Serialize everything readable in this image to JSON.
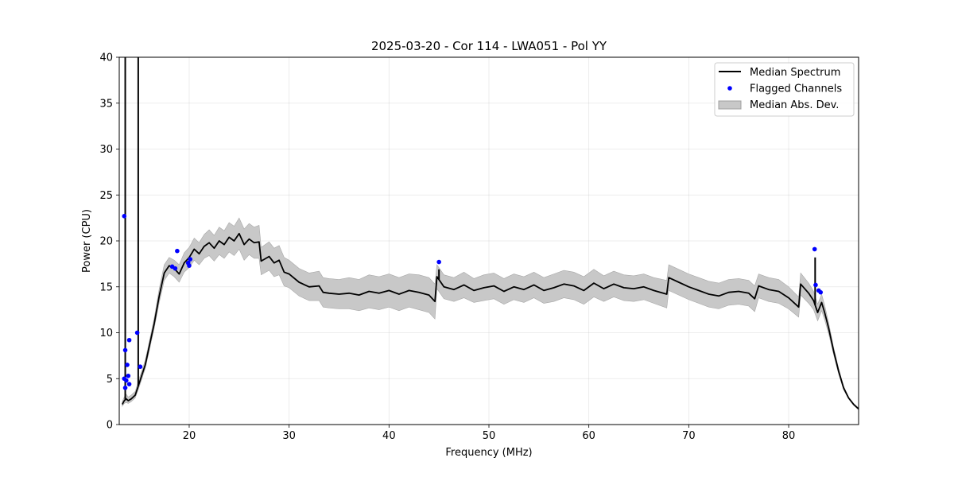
{
  "chart_data": {
    "type": "line",
    "title": "2025-03-20 - Cor 114 - LWA051 - Pol YY",
    "xlabel": "Frequency (MHz)",
    "ylabel": "Power (CPU)",
    "xlim": [
      13,
      87
    ],
    "ylim": [
      0,
      40
    ],
    "xticks": [
      20,
      30,
      40,
      50,
      60,
      70,
      80
    ],
    "yticks": [
      0,
      5,
      10,
      15,
      20,
      25,
      30,
      35,
      40
    ],
    "grid": true,
    "legend_position": "top-right",
    "colors": {
      "median": "#000000",
      "flagged": "#0000ff",
      "mad": "#c8c8c8"
    },
    "series": [
      {
        "name": "Median Spectrum",
        "kind": "line",
        "x": [
          13.3,
          13.5,
          13.7,
          13.9,
          14.2,
          14.6,
          15.0,
          15.6,
          16.0,
          16.5,
          17.0,
          17.5,
          18.0,
          18.5,
          19.0,
          19.5,
          20.0,
          20.5,
          21.0,
          21.5,
          22.0,
          22.5,
          23.0,
          23.5,
          24.0,
          24.5,
          25.0,
          25.5,
          26.0,
          26.5,
          27.0,
          27.2,
          28.0,
          28.5,
          29.0,
          29.5,
          30.0,
          31.0,
          32.0,
          33.0,
          33.4,
          34.0,
          35.0,
          36.0,
          37.0,
          38.0,
          39.0,
          40.0,
          41.0,
          42.0,
          43.0,
          44.0,
          44.6,
          44.8,
          45.5,
          46.5,
          47.5,
          48.5,
          49.5,
          50.5,
          51.5,
          52.5,
          53.5,
          54.5,
          55.5,
          56.5,
          57.5,
          58.5,
          59.5,
          60.5,
          61.5,
          62.5,
          63.5,
          64.5,
          65.5,
          66.5,
          67.8,
          68.0,
          69.0,
          70.0,
          71.0,
          72.0,
          73.0,
          74.0,
          75.0,
          76.0,
          76.6,
          77.0,
          78.0,
          79.0,
          80.0,
          81.0,
          81.2,
          82.0,
          82.5,
          82.9,
          83.3,
          83.6,
          84.0,
          84.5,
          85.0,
          85.5,
          86.0,
          86.5,
          87.0
        ],
        "y": [
          2.2,
          2.6,
          2.8,
          2.6,
          2.8,
          3.2,
          4.5,
          6.5,
          8.5,
          11.0,
          14.0,
          16.5,
          17.3,
          17.0,
          16.4,
          17.6,
          18.2,
          19.1,
          18.6,
          19.4,
          19.8,
          19.2,
          20.0,
          19.6,
          20.4,
          20.0,
          20.8,
          19.6,
          20.2,
          19.8,
          19.9,
          17.8,
          18.3,
          17.6,
          17.9,
          16.6,
          16.4,
          15.5,
          15.0,
          15.1,
          14.4,
          14.3,
          14.2,
          14.3,
          14.1,
          14.5,
          14.3,
          14.6,
          14.2,
          14.6,
          14.4,
          14.1,
          13.4,
          16.1,
          15.0,
          14.7,
          15.2,
          14.6,
          14.9,
          15.1,
          14.5,
          15.0,
          14.7,
          15.2,
          14.6,
          14.9,
          15.3,
          15.1,
          14.6,
          15.4,
          14.8,
          15.3,
          14.9,
          14.8,
          15.0,
          14.6,
          14.2,
          16.0,
          15.5,
          15.0,
          14.6,
          14.2,
          14.0,
          14.4,
          14.5,
          14.3,
          13.7,
          15.1,
          14.7,
          14.5,
          13.8,
          12.8,
          15.3,
          14.3,
          13.5,
          12.2,
          13.3,
          12.2,
          10.5,
          8.0,
          5.8,
          4.0,
          2.9,
          2.2,
          1.7
        ],
        "spikes": [
          {
            "x": 13.6,
            "peak": 40
          },
          {
            "x": 14.9,
            "peak": 40
          },
          {
            "x": 45.0,
            "peak": 16.9
          },
          {
            "x": 82.65,
            "peak": 18.2
          }
        ]
      },
      {
        "name": "Flagged Channels",
        "kind": "scatter",
        "points": [
          [
            13.5,
            22.7
          ],
          [
            13.5,
            5.0
          ],
          [
            13.6,
            8.1
          ],
          [
            13.7,
            4.8
          ],
          [
            13.8,
            6.5
          ],
          [
            13.9,
            5.3
          ],
          [
            14.0,
            9.2
          ],
          [
            14.0,
            4.4
          ],
          [
            13.6,
            4.0
          ],
          [
            14.8,
            10.0
          ],
          [
            15.1,
            6.3
          ],
          [
            18.3,
            17.2
          ],
          [
            18.6,
            17.0
          ],
          [
            18.8,
            18.9
          ],
          [
            19.9,
            17.6
          ],
          [
            20.1,
            18.0
          ],
          [
            20.0,
            17.3
          ],
          [
            45.0,
            17.7
          ],
          [
            82.6,
            19.1
          ],
          [
            82.7,
            15.2
          ],
          [
            83.0,
            14.6
          ],
          [
            83.2,
            14.4
          ]
        ]
      },
      {
        "name": "Median Abs. Dev.",
        "kind": "band",
        "x": [
          13.3,
          13.5,
          13.7,
          13.9,
          14.2,
          14.6,
          15.0,
          15.6,
          16.0,
          16.5,
          17.0,
          17.5,
          18.0,
          18.5,
          19.0,
          19.5,
          20.0,
          20.5,
          21.0,
          21.5,
          22.0,
          22.5,
          23.0,
          23.5,
          24.0,
          24.5,
          25.0,
          25.5,
          26.0,
          26.5,
          27.0,
          27.2,
          28.0,
          28.5,
          29.0,
          29.5,
          30.0,
          31.0,
          32.0,
          33.0,
          33.4,
          34.0,
          35.0,
          36.0,
          37.0,
          38.0,
          39.0,
          40.0,
          41.0,
          42.0,
          43.0,
          44.0,
          44.6,
          44.8,
          45.5,
          46.5,
          47.5,
          48.5,
          49.5,
          50.5,
          51.5,
          52.5,
          53.5,
          54.5,
          55.5,
          56.5,
          57.5,
          58.5,
          59.5,
          60.5,
          61.5,
          62.5,
          63.5,
          64.5,
          65.5,
          66.5,
          67.8,
          68.0,
          69.0,
          70.0,
          71.0,
          72.0,
          73.0,
          74.0,
          75.0,
          76.0,
          76.6,
          77.0,
          78.0,
          79.0,
          80.0,
          81.0,
          81.2,
          82.0,
          82.5,
          82.9,
          83.3,
          83.6,
          84.0,
          84.5,
          85.0,
          85.5,
          86.0,
          86.5,
          87.0
        ],
        "lower": [
          2.0,
          2.3,
          2.4,
          2.3,
          2.5,
          2.9,
          4.1,
          6.1,
          8.0,
          10.5,
          13.3,
          15.7,
          16.5,
          16.1,
          15.5,
          16.6,
          17.1,
          17.9,
          17.4,
          18.1,
          18.4,
          17.8,
          18.5,
          18.1,
          18.8,
          18.4,
          19.1,
          17.9,
          18.5,
          18.1,
          18.1,
          16.3,
          16.8,
          16.1,
          16.3,
          15.1,
          14.9,
          14.0,
          13.5,
          13.5,
          12.8,
          12.7,
          12.6,
          12.6,
          12.4,
          12.7,
          12.5,
          12.8,
          12.4,
          12.8,
          12.5,
          12.2,
          11.5,
          14.8,
          13.7,
          13.4,
          13.8,
          13.3,
          13.5,
          13.7,
          13.1,
          13.6,
          13.3,
          13.8,
          13.2,
          13.4,
          13.8,
          13.6,
          13.1,
          13.9,
          13.4,
          13.9,
          13.5,
          13.4,
          13.6,
          13.2,
          12.7,
          14.6,
          14.1,
          13.6,
          13.2,
          12.8,
          12.6,
          13.0,
          13.1,
          12.9,
          12.3,
          13.8,
          13.4,
          13.2,
          12.6,
          11.7,
          14.1,
          13.2,
          12.5,
          11.3,
          12.4,
          11.4,
          9.9,
          7.6,
          5.5,
          3.8,
          2.8,
          2.1,
          1.6
        ],
        "upper": [
          2.5,
          3.0,
          3.3,
          3.0,
          3.2,
          3.6,
          5.0,
          7.0,
          9.0,
          11.6,
          14.8,
          17.4,
          18.2,
          17.9,
          17.4,
          18.7,
          19.3,
          20.3,
          19.8,
          20.7,
          21.2,
          20.6,
          21.5,
          21.1,
          22.0,
          21.6,
          22.5,
          21.3,
          21.9,
          21.5,
          21.7,
          19.3,
          19.9,
          19.2,
          19.5,
          18.2,
          17.9,
          17.0,
          16.5,
          16.7,
          16.0,
          15.9,
          15.8,
          16.0,
          15.8,
          16.3,
          16.1,
          16.4,
          16.0,
          16.4,
          16.3,
          16.0,
          15.3,
          17.4,
          16.3,
          16.0,
          16.6,
          15.9,
          16.3,
          16.5,
          15.9,
          16.4,
          16.1,
          16.6,
          16.0,
          16.4,
          16.8,
          16.6,
          16.1,
          16.9,
          16.2,
          16.7,
          16.3,
          16.2,
          16.4,
          16.0,
          15.7,
          17.4,
          16.9,
          16.4,
          16.0,
          15.6,
          15.4,
          15.8,
          15.9,
          15.7,
          15.1,
          16.4,
          16.0,
          15.8,
          15.0,
          13.9,
          16.5,
          15.4,
          14.5,
          13.1,
          14.2,
          13.0,
          11.1,
          8.4,
          6.1,
          4.2,
          3.0,
          2.3,
          1.8
        ]
      }
    ]
  }
}
